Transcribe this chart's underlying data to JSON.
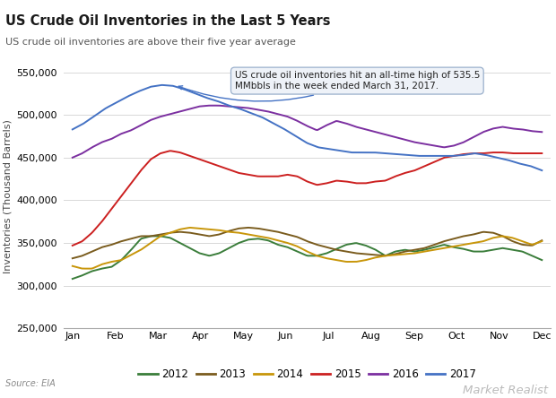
{
  "title": "US Crude Oil Inventories in the Last 5 Years",
  "subtitle": "US crude oil inventories are above their five year average",
  "ylabel": "Inventories (Thousand Barrels)",
  "source": "Source: EIA",
  "watermark": "Market Realist",
  "ylim": [
    250000,
    560000
  ],
  "yticks": [
    250000,
    300000,
    350000,
    400000,
    450000,
    500000,
    550000
  ],
  "months": [
    "Jan",
    "Feb",
    "Mar",
    "Apr",
    "May",
    "Jun",
    "Jul",
    "Aug",
    "Sep",
    "Oct",
    "Nov",
    "Dec"
  ],
  "annotation_text": "US crude oil inventories hit an all-time high of 535.5\nMMbbls in the week ended March 31, 2017.",
  "series": {
    "2012": {
      "color": "#3a7d3a",
      "data": [
        308000,
        312000,
        317000,
        320000,
        322000,
        330000,
        342000,
        355000,
        358000,
        358000,
        356000,
        350000,
        344000,
        338000,
        335000,
        338000,
        344000,
        350000,
        354000,
        355000,
        353000,
        348000,
        345000,
        340000,
        335000,
        335000,
        338000,
        343000,
        348000,
        350000,
        347000,
        342000,
        335000,
        340000,
        342000,
        340000,
        342000,
        345000,
        348000,
        345000,
        343000,
        340000,
        340000,
        342000,
        344000,
        342000,
        340000,
        335000,
        330000
      ]
    },
    "2013": {
      "color": "#7a5c1e",
      "data": [
        332000,
        335000,
        340000,
        345000,
        348000,
        352000,
        355000,
        358000,
        358000,
        360000,
        362000,
        363000,
        362000,
        360000,
        358000,
        360000,
        364000,
        367000,
        368000,
        367000,
        365000,
        363000,
        360000,
        357000,
        352000,
        348000,
        345000,
        342000,
        340000,
        338000,
        337000,
        336000,
        335000,
        337000,
        340000,
        342000,
        344000,
        348000,
        352000,
        355000,
        358000,
        360000,
        363000,
        362000,
        358000,
        352000,
        348000,
        347000,
        353000
      ]
    },
    "2014": {
      "color": "#c8960a",
      "data": [
        323000,
        320000,
        320000,
        325000,
        328000,
        330000,
        336000,
        342000,
        350000,
        358000,
        362000,
        366000,
        368000,
        367000,
        366000,
        365000,
        363000,
        362000,
        360000,
        358000,
        356000,
        353000,
        350000,
        346000,
        340000,
        335000,
        332000,
        330000,
        328000,
        328000,
        330000,
        333000,
        335000,
        336000,
        337000,
        338000,
        340000,
        342000,
        344000,
        346000,
        348000,
        350000,
        352000,
        356000,
        358000,
        356000,
        352000,
        348000,
        352000
      ]
    },
    "2015": {
      "color": "#cc2020",
      "data": [
        347000,
        352000,
        362000,
        375000,
        390000,
        405000,
        420000,
        435000,
        448000,
        455000,
        458000,
        456000,
        452000,
        448000,
        444000,
        440000,
        436000,
        432000,
        430000,
        428000,
        428000,
        428000,
        430000,
        428000,
        422000,
        418000,
        420000,
        423000,
        422000,
        420000,
        420000,
        422000,
        423000,
        428000,
        432000,
        435000,
        440000,
        445000,
        450000,
        452000,
        454000,
        455000,
        455000,
        456000,
        456000,
        455000,
        455000,
        455000,
        455000
      ]
    },
    "2016": {
      "color": "#7b2fa0",
      "data": [
        450000,
        455000,
        462000,
        468000,
        472000,
        478000,
        482000,
        488000,
        494000,
        498000,
        501000,
        504000,
        507000,
        510000,
        511000,
        511000,
        510000,
        509000,
        508000,
        506000,
        504000,
        501000,
        498000,
        493000,
        487000,
        482000,
        488000,
        493000,
        490000,
        486000,
        483000,
        480000,
        477000,
        474000,
        471000,
        468000,
        466000,
        464000,
        462000,
        464000,
        468000,
        474000,
        480000,
        484000,
        486000,
        484000,
        483000,
        481000,
        480000
      ]
    },
    "2017": {
      "color": "#4472c4",
      "data": [
        483000,
        490000,
        499000,
        508000,
        515000,
        522000,
        528000,
        533000,
        535000,
        534000,
        530000,
        525000,
        520000,
        516000,
        511000,
        507000,
        502000,
        497000,
        490000,
        483000,
        475000,
        467000,
        462000,
        460000,
        458000,
        456000,
        456000,
        456000,
        455000,
        454000,
        453000,
        452000,
        452000,
        452000,
        452000,
        453000,
        455000,
        453000,
        450000,
        447000,
        443000,
        440000,
        435000
      ]
    }
  }
}
